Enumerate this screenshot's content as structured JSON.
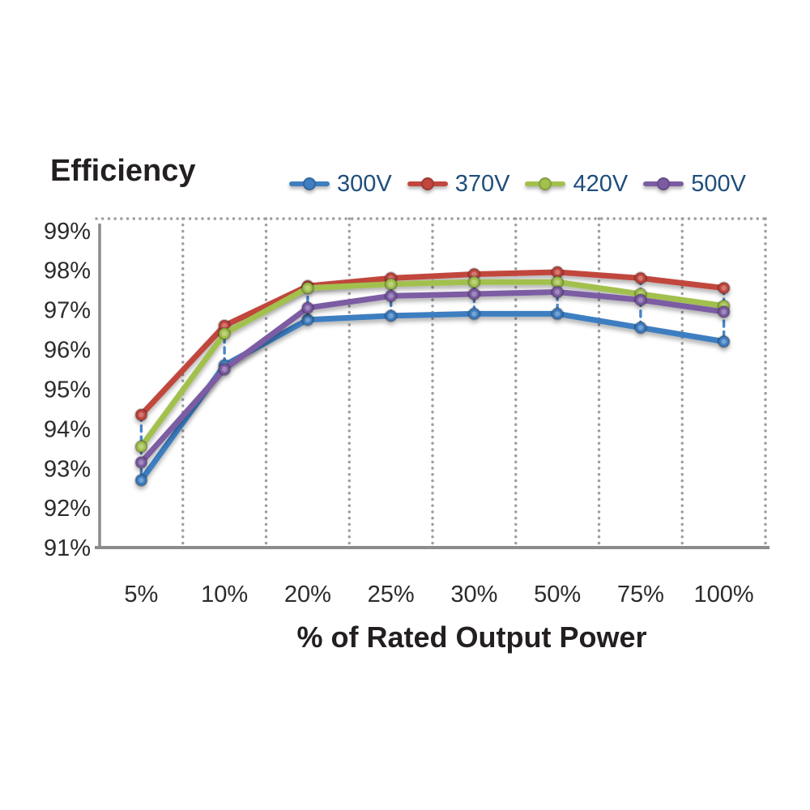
{
  "chart_data": {
    "type": "line",
    "title": "Efficiency",
    "xlabel": "% of Rated Output Power",
    "ylabel": "",
    "categories": [
      "5%",
      "10%",
      "20%",
      "25%",
      "30%",
      "50%",
      "75%",
      "100%"
    ],
    "series": [
      {
        "name": "300V",
        "color": "#3E7EC1",
        "values": [
          92.7,
          95.6,
          96.75,
          96.85,
          96.9,
          96.9,
          96.55,
          96.2
        ]
      },
      {
        "name": "370V",
        "color": "#C1463E",
        "values": [
          94.35,
          96.6,
          97.6,
          97.8,
          97.9,
          97.95,
          97.8,
          97.55
        ]
      },
      {
        "name": "420V",
        "color": "#A2C04E",
        "values": [
          93.55,
          96.4,
          97.55,
          97.65,
          97.7,
          97.7,
          97.4,
          97.1
        ]
      },
      {
        "name": "500V",
        "color": "#7B5CA3",
        "values": [
          93.15,
          95.5,
          97.05,
          97.35,
          97.4,
          97.45,
          97.25,
          96.95
        ]
      }
    ],
    "y_ticks": [
      {
        "label": "99%",
        "value": 99
      },
      {
        "label": "98%",
        "value": 98
      },
      {
        "label": "97%",
        "value": 97
      },
      {
        "label": "96%",
        "value": 96
      },
      {
        "label": "95%",
        "value": 95
      },
      {
        "label": "94%",
        "value": 94
      },
      {
        "label": "93%",
        "value": 93
      },
      {
        "label": "92%",
        "value": 92
      },
      {
        "label": "91%",
        "value": 91
      }
    ],
    "ylim": [
      91,
      99.3
    ],
    "legend_position": "top",
    "grid": {
      "vertical_dotted": true,
      "horizontal": false,
      "top_border_dotted": true
    },
    "high_low_lines": true,
    "colors": {
      "axis": "#8C8C8C",
      "gridline": "#9D9D9D",
      "high_low": "#4A86C8",
      "tick_text": "#2B2B2B",
      "title_text": "#231F20",
      "legend_text": "#1F4E7C",
      "background": "#FFFFFF"
    }
  }
}
